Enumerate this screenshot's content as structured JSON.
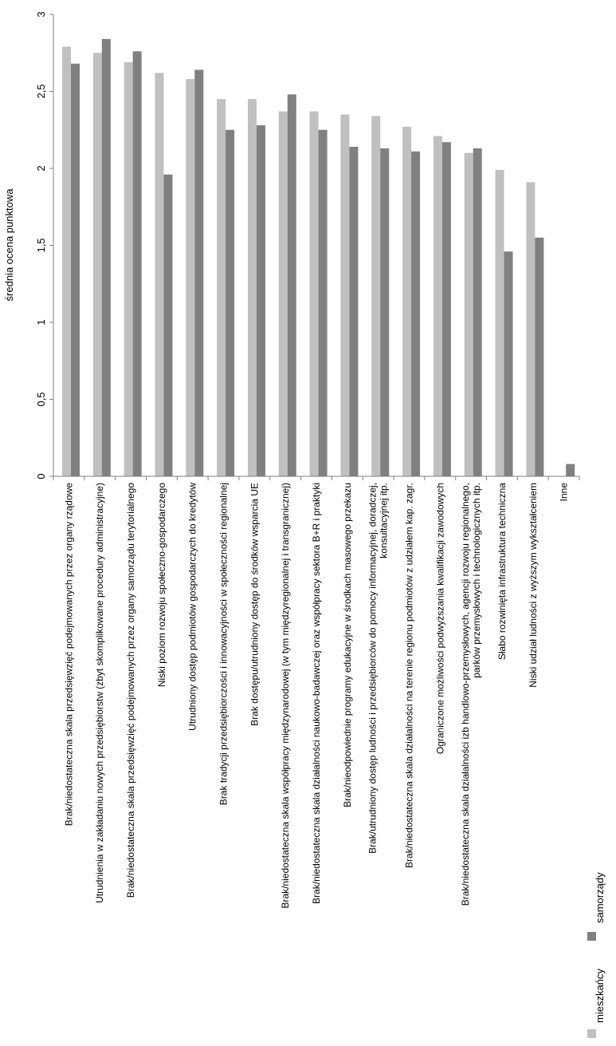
{
  "chart_data": {
    "type": "bar",
    "ylabel": "średnia ocena punktowa",
    "ylim": [
      0,
      3
    ],
    "yticks": [
      "0",
      "0,5",
      "1",
      "1,5",
      "2",
      "2,5",
      "3"
    ],
    "grid": false,
    "legend_position": "right",
    "categories": [
      [
        "Brak/niedostateczna skala przedsięwzięć podejmowanych przez organy rządowe"
      ],
      [
        "Utrudnienia w zakładaniu nowych przedsiębiorstw (zbyt skomplikowane procedury administracyjne)"
      ],
      [
        "Brak/niedostateczna skala przedsięwzięć podejmowanych przez organy samorządu terytorialnego"
      ],
      [
        "Niski poziom rozwoju społeczno-gospodarczego"
      ],
      [
        "Utrudniony dostęp podmiotów gospodarczych do kredytów"
      ],
      [
        "Brak tradycji przedsiębiorczości i innowacyjności w społeczności regionalnej"
      ],
      [
        "Brak dostępu/utrudniony dostęp do środków wsparcia UE"
      ],
      [
        "Brak/niedostateczna skala współpracy międzynarodowej (w tym międzyregionalnej i transgranicznej)"
      ],
      [
        "Brak/niedostateczna skala działalności naukowo-badawczej oraz współpracy sektora B+R i praktyki"
      ],
      [
        "Brak/nieodpowiednie programy edukacyjne w środkach masowego przekazu"
      ],
      [
        "Brak/utrudniony dostęp ludności i przedsiębiorców do pomocy informacyjnej, doradczej,",
        "konsultacyjnej itp."
      ],
      [
        "Brak/niedostateczna skala działalności na terenie regionu podmiotów z udziałem kap. zagr."
      ],
      [
        "Ograniczone możliwości podwyższania kwalifikacji zawodowych"
      ],
      [
        "Brak/niedostateczna skala działalności izb handlowo-przemysłowych, agencji rozwoju regionalnego,",
        "parków przemysłowych i technologicznych itp."
      ],
      [
        "Słabo rozwinięta infrastruktura techniczna"
      ],
      [
        "Niski udział ludności z wyższym wykształceniem"
      ],
      [
        "Inne"
      ]
    ],
    "series": [
      {
        "name": "mieszkańcy",
        "color": "#c0c0c0",
        "values": [
          2.79,
          2.75,
          2.69,
          2.62,
          2.58,
          2.45,
          2.45,
          2.37,
          2.37,
          2.35,
          2.34,
          2.27,
          2.21,
          2.1,
          1.99,
          1.91,
          0
        ]
      },
      {
        "name": "samorządy",
        "color": "#808080",
        "values": [
          2.68,
          2.84,
          2.76,
          1.96,
          2.64,
          2.25,
          2.28,
          2.48,
          2.25,
          2.14,
          2.13,
          2.11,
          2.17,
          2.13,
          1.46,
          1.55,
          0.08
        ]
      }
    ]
  }
}
